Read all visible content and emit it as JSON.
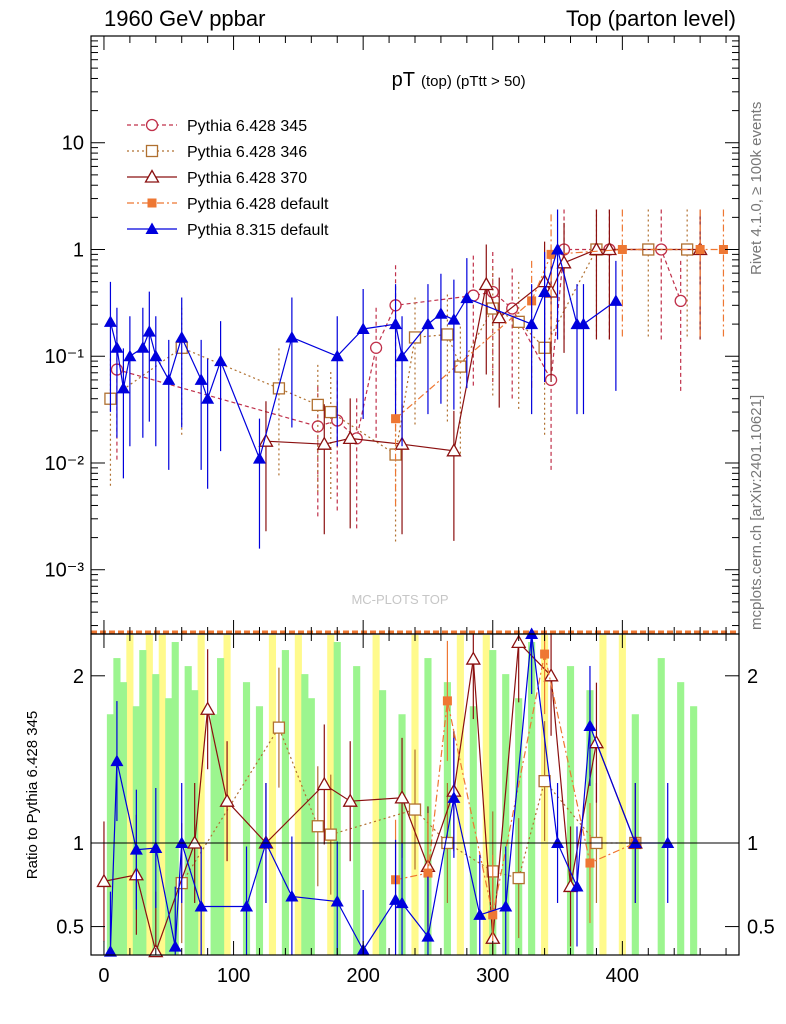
{
  "header": {
    "left": "1960 GeV ppbar",
    "right": "Top (parton level)"
  },
  "side_labels": {
    "rivet": "Rivet 4.1.0, ≥ 100k events",
    "mcplots": "mcplots.cern.ch [arXiv:2401.10621]"
  },
  "watermark": "MC-PLOTS TOP",
  "chart_data": [
    {
      "type": "line",
      "title": "pT",
      "title_small": "(top) (pTtt > 50)",
      "xlabel": "",
      "ylabel": "",
      "yscale": "log",
      "xlim": [
        -10,
        490
      ],
      "ylim": [
        0.00025,
        100
      ],
      "y_tick_labels": [
        "10⁻³",
        "10⁻²",
        "10⁻¹",
        "1",
        "10"
      ],
      "legend_position": "top-left",
      "series": [
        {
          "name": "Pythia 6.428 345",
          "color": "#c0304a",
          "dash": "4,3",
          "marker": "open-circle",
          "points": [
            [
              10,
              0.075
            ],
            [
              165,
              0.022
            ],
            [
              180,
              0.025
            ],
            [
              195,
              0.017
            ],
            [
              210,
              0.12
            ],
            [
              225,
              0.3
            ],
            [
              285,
              0.37
            ],
            [
              300,
              0.4
            ],
            [
              315,
              0.28
            ],
            [
              345,
              0.06
            ],
            [
              355,
              1.0
            ],
            [
              390,
              1.0
            ],
            [
              430,
              1.0
            ],
            [
              445,
              0.33
            ]
          ]
        },
        {
          "name": "Pythia 6.428 346",
          "color": "#b07030",
          "dash": "2,3",
          "marker": "open-square",
          "points": [
            [
              5,
              0.04
            ],
            [
              60,
              0.12
            ],
            [
              135,
              0.05
            ],
            [
              165,
              0.035
            ],
            [
              175,
              0.03
            ],
            [
              225,
              0.012
            ],
            [
              240,
              0.15
            ],
            [
              265,
              0.16
            ],
            [
              275,
              0.08
            ],
            [
              300,
              0.28
            ],
            [
              320,
              0.21
            ],
            [
              340,
              0.12
            ],
            [
              380,
              1.0
            ],
            [
              420,
              1.0
            ],
            [
              450,
              1.0
            ]
          ]
        },
        {
          "name": "Pythia 6.428 370",
          "color": "#8b1010",
          "dash": "",
          "marker": "open-triangle",
          "points": [
            [
              125,
              0.016
            ],
            [
              170,
              0.015
            ],
            [
              190,
              0.017
            ],
            [
              230,
              0.015
            ],
            [
              270,
              0.013
            ],
            [
              295,
              0.47
            ],
            [
              305,
              0.23
            ],
            [
              340,
              0.5
            ],
            [
              345,
              0.4
            ],
            [
              355,
              0.75
            ],
            [
              380,
              1.0
            ],
            [
              390,
              1.0
            ],
            [
              460,
              1.0
            ]
          ]
        },
        {
          "name": "Pythia 6.428 default",
          "color": "#ee7733",
          "dash": "7,3,2,3",
          "marker": "filled-square",
          "points": [
            [
              225,
              0.026
            ],
            [
              330,
              0.33
            ],
            [
              345,
              0.9
            ],
            [
              400,
              1.0
            ],
            [
              460,
              1.0
            ],
            [
              478,
              1.0
            ]
          ]
        },
        {
          "name": "Pythia 8.315 default",
          "color": "#0000dd",
          "dash": "",
          "marker": "filled-triangle",
          "points": [
            [
              5,
              0.21
            ],
            [
              10,
              0.12
            ],
            [
              15,
              0.05
            ],
            [
              20,
              0.1
            ],
            [
              30,
              0.12
            ],
            [
              35,
              0.17
            ],
            [
              40,
              0.1
            ],
            [
              50,
              0.06
            ],
            [
              60,
              0.15
            ],
            [
              75,
              0.06
            ],
            [
              80,
              0.04
            ],
            [
              90,
              0.09
            ],
            [
              120,
              0.011
            ],
            [
              145,
              0.15
            ],
            [
              180,
              0.1
            ],
            [
              200,
              0.18
            ],
            [
              225,
              0.2
            ],
            [
              230,
              0.1
            ],
            [
              250,
              0.2
            ],
            [
              260,
              0.25
            ],
            [
              270,
              0.22
            ],
            [
              280,
              0.35
            ],
            [
              330,
              0.2
            ],
            [
              340,
              0.4
            ],
            [
              350,
              1.0
            ],
            [
              365,
              0.2
            ],
            [
              370,
              0.2
            ],
            [
              395,
              0.33
            ]
          ]
        }
      ]
    },
    {
      "type": "line",
      "title": "",
      "xlabel": "",
      "ylabel": "Ratio to Pythia 6.428 345",
      "xlim": [
        -10,
        490
      ],
      "ylim": [
        0.33,
        2.25
      ],
      "x_ticks": [
        0,
        100,
        200,
        300,
        400
      ],
      "y_ticks": [
        0.5,
        1,
        2
      ],
      "band_green_x": [
        5,
        10,
        15,
        25,
        30,
        40,
        50,
        55,
        65,
        70,
        85,
        90,
        110,
        120,
        140,
        155,
        160,
        180,
        195,
        215,
        230,
        250,
        265,
        285,
        300,
        310,
        320,
        330,
        360,
        375,
        410,
        430,
        445,
        455
      ],
      "band_yellow_x": [
        20,
        35,
        45,
        75,
        95,
        130,
        150,
        175,
        210,
        240,
        275,
        295,
        340,
        385,
        400
      ],
      "series": [
        {
          "name": "Pythia 6.428 346",
          "points": [
            [
              60,
              0.76
            ],
            [
              135,
              1.69
            ],
            [
              165,
              1.1
            ],
            [
              175,
              1.05
            ],
            [
              240,
              1.2
            ],
            [
              265,
              1.0
            ],
            [
              300,
              0.83
            ],
            [
              320,
              0.79
            ],
            [
              340,
              1.37
            ],
            [
              380,
              1.0
            ],
            [
              410,
              1.0
            ]
          ]
        },
        {
          "name": "Pythia 6.428 370",
          "points": [
            [
              0,
              0.77
            ],
            [
              25,
              0.81
            ],
            [
              40,
              0.35
            ],
            [
              70,
              1.0
            ],
            [
              80,
              1.8
            ],
            [
              95,
              1.25
            ],
            [
              125,
              1.0
            ],
            [
              170,
              1.35
            ],
            [
              190,
              1.25
            ],
            [
              230,
              1.27
            ],
            [
              250,
              0.86
            ],
            [
              270,
              1.31
            ],
            [
              285,
              2.1
            ],
            [
              300,
              0.43
            ],
            [
              320,
              2.2
            ],
            [
              345,
              2.0
            ],
            [
              360,
              0.74
            ],
            [
              380,
              1.6
            ],
            [
              410,
              1.0
            ]
          ]
        },
        {
          "name": "Pythia 6.428 default",
          "points": [
            [
              225,
              0.78
            ],
            [
              250,
              0.82
            ],
            [
              265,
              1.85
            ],
            [
              300,
              0.57
            ],
            [
              340,
              2.13
            ],
            [
              375,
              0.88
            ],
            [
              410,
              1.0
            ]
          ]
        },
        {
          "name": "Pythia 8.315 default",
          "points": [
            [
              5,
              0.35
            ],
            [
              10,
              1.49
            ],
            [
              25,
              0.96
            ],
            [
              40,
              0.97
            ],
            [
              55,
              0.38
            ],
            [
              60,
              1.0
            ],
            [
              75,
              0.62
            ],
            [
              110,
              0.62
            ],
            [
              125,
              1.0
            ],
            [
              145,
              0.68
            ],
            [
              180,
              0.65
            ],
            [
              200,
              0.36
            ],
            [
              225,
              0.66
            ],
            [
              230,
              0.64
            ],
            [
              250,
              0.44
            ],
            [
              270,
              1.27
            ],
            [
              290,
              0.57
            ],
            [
              310,
              0.62
            ],
            [
              330,
              2.25
            ],
            [
              350,
              1.0
            ],
            [
              365,
              0.74
            ],
            [
              375,
              1.7
            ],
            [
              410,
              1.0
            ],
            [
              435,
              1.0
            ]
          ]
        }
      ]
    }
  ]
}
